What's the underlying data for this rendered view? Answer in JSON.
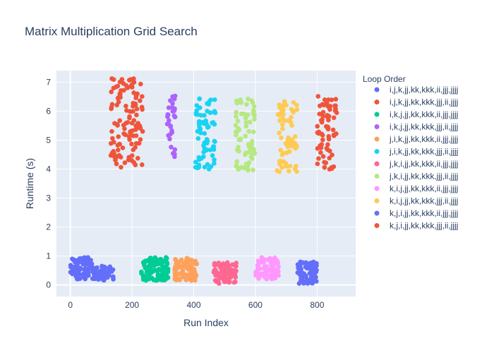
{
  "chart_data": {
    "type": "scatter",
    "title": "Matrix Multiplication Grid Search",
    "xlabel": "Run Index",
    "ylabel": "Runtime (s)",
    "xlim": [
      -45,
      925
    ],
    "ylim": [
      -0.4,
      7.4
    ],
    "xticks": [
      0,
      200,
      400,
      600,
      800
    ],
    "yticks": [
      0,
      1,
      2,
      3,
      4,
      5,
      6,
      7
    ],
    "grid": true,
    "legend_title": "Loop Order",
    "legend_position": "right",
    "series": [
      {
        "name": "i,j,k,jj,kk,kkk,ii,jjj,jjjj",
        "color": "#636efa",
        "x_range": [
          0,
          72
        ],
        "y_range": [
          0.2,
          0.95
        ]
      },
      {
        "name": "i,j,k,jj,kk,kkk,jjj,ii,jjjj",
        "color": "#EF553B",
        "x_range": [
          130,
          235
        ],
        "y_range": [
          4.05,
          7.15
        ]
      },
      {
        "name": "i,k,j,jj,kk,kkk,ii,jjj,jjjj",
        "color": "#00cc96",
        "x_range": [
          230,
          320
        ],
        "y_range": [
          0.15,
          0.95
        ]
      },
      {
        "name": "i,k,j,jj,kk,kkk,jjj,ii,jjjj",
        "color": "#ab63fa",
        "x_range": [
          312,
          340
        ],
        "y_range": [
          4.4,
          6.6
        ]
      },
      {
        "name": "j,i,k,jj,kk,kkk,ii,jjj,jjjj",
        "color": "#FFA15A",
        "x_range": [
          338,
          412
        ],
        "y_range": [
          0.15,
          0.95
        ]
      },
      {
        "name": "j,i,k,jj,kk,kkk,jjj,ii,jjjj",
        "color": "#19d3f3",
        "x_range": [
          405,
          470
        ],
        "y_range": [
          3.95,
          6.5
        ]
      },
      {
        "name": "j,k,i,jj,kk,kkk,ii,jjj,jjjj",
        "color": "#FF6692",
        "x_range": [
          465,
          540
        ],
        "y_range": [
          0.05,
          0.8
        ]
      },
      {
        "name": "j,k,i,jj,kk,kkk,jjj,ii,jjjj",
        "color": "#B6E880",
        "x_range": [
          535,
          600
        ],
        "y_range": [
          3.95,
          6.5
        ]
      },
      {
        "name": "k,i,j,jj,kk,kkk,ii,jjj,jjjj",
        "color": "#FF97FF",
        "x_range": [
          600,
          675
        ],
        "y_range": [
          0.2,
          0.95
        ]
      },
      {
        "name": "k,i,j,jj,kk,kkk,jjj,ii,jjjj",
        "color": "#FECB52",
        "x_range": [
          670,
          735
        ],
        "y_range": [
          3.9,
          6.55
        ]
      },
      {
        "name": "k,j,i,jj,kk,kkk,ii,jjj,jjjj",
        "color": "#636efa",
        "x_range": [
          735,
          800
        ],
        "y_range": [
          0.05,
          0.8
        ]
      },
      {
        "name": "k,j,i,jj,kk,kkk,jjj,ii,jjjj",
        "color": "#EF553B",
        "x_range": [
          800,
          865
        ],
        "y_range": [
          3.95,
          6.55
        ]
      }
    ],
    "extra_clusters": [
      {
        "series_index": 0,
        "x_range": [
          72,
          140
        ],
        "y_range": [
          0.15,
          0.65
        ]
      }
    ]
  }
}
